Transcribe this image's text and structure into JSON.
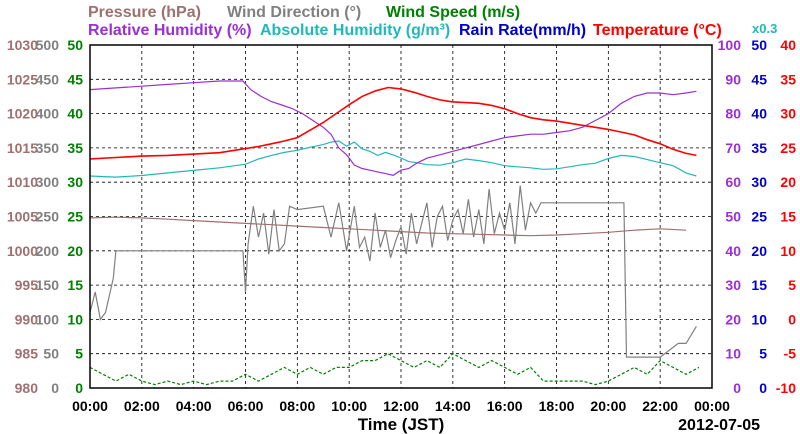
{
  "chart_data": {
    "type": "line",
    "legend": [
      {
        "text": "Pressure (hPa)",
        "color": "#a07070"
      },
      {
        "text": "Wind Direction (°)",
        "color": "#808080"
      },
      {
        "text": "Wind Speed (m/s)",
        "color": "#008000"
      },
      {
        "text": "Relative Humidity (%)",
        "color": "#9b30d0"
      },
      {
        "text": "Absolute Humidity (g/m³)",
        "color": "#20b8b8"
      },
      {
        "text": "Rain Rate(mm/h)",
        "color": "#0000cc"
      },
      {
        "text": "Temperature (°C)",
        "color": "#ff0000"
      }
    ],
    "scale_note": "x0.3",
    "x_ticks": [
      "00:00",
      "02:00",
      "04:00",
      "06:00",
      "08:00",
      "10:00",
      "12:00",
      "14:00",
      "16:00",
      "18:00",
      "20:00",
      "22:00",
      "00:00"
    ],
    "xlabel": "Time (JST)",
    "date": "2012-07-05",
    "xlim": [
      0,
      24
    ],
    "axes": {
      "pressure": {
        "ticks": [
          "1030",
          "1025",
          "1020",
          "1015",
          "1010",
          "1005",
          "1000",
          "995",
          "990",
          "985",
          "980"
        ],
        "range": [
          980,
          1030
        ],
        "color": "#a07070"
      },
      "wind_direction": {
        "ticks": [
          "500",
          "450",
          "400",
          "350",
          "300",
          "250",
          "200",
          "150",
          "100",
          "50",
          "0"
        ],
        "range": [
          0,
          500
        ],
        "color": "#808080"
      },
      "wind_speed": {
        "ticks": [
          "50",
          "45",
          "40",
          "35",
          "30",
          "25",
          "20",
          "15",
          "10",
          "5",
          "0"
        ],
        "range": [
          0,
          50
        ],
        "color": "#008000"
      },
      "humidity": {
        "ticks": [
          "100",
          "90",
          "80",
          "70",
          "60",
          "50",
          "40",
          "30",
          "20",
          "10",
          "0"
        ],
        "range": [
          0,
          100
        ],
        "color": "#9b30d0"
      },
      "rain": {
        "ticks": [
          "50",
          "45",
          "40",
          "35",
          "30",
          "25",
          "20",
          "15",
          "10",
          "5",
          "0"
        ],
        "range": [
          0,
          50
        ],
        "color": "#0000cc"
      },
      "temperature": {
        "ticks": [
          "40",
          "35",
          "30",
          "25",
          "20",
          "15",
          "10",
          "5",
          "0",
          "-5",
          "-10"
        ],
        "range": [
          -10,
          40
        ],
        "color": "#ff0000"
      }
    },
    "series": [
      {
        "name": "Pressure",
        "color": "#a07070",
        "range": [
          980,
          1030
        ],
        "x": [
          0,
          1,
          2,
          3,
          4,
          5,
          6,
          7,
          8,
          9,
          10,
          11,
          12,
          13,
          14,
          15,
          16,
          17,
          18,
          19,
          20,
          21,
          22,
          23
        ],
        "y": [
          1004.8,
          1004.9,
          1004.8,
          1004.6,
          1004.4,
          1004.2,
          1004.0,
          1003.8,
          1003.6,
          1003.4,
          1003.2,
          1003.0,
          1002.8,
          1002.6,
          1002.5,
          1002.4,
          1002.3,
          1002.2,
          1002.3,
          1002.5,
          1002.7,
          1003.0,
          1003.2,
          1003.0
        ]
      },
      {
        "name": "Wind Direction",
        "color": "#808080",
        "range": [
          0,
          500
        ],
        "x": [
          0,
          0.2,
          0.4,
          0.6,
          0.9,
          1.0,
          2.0,
          3.0,
          4.0,
          5.0,
          5.9,
          6.0,
          6.1,
          6.3,
          6.5,
          6.7,
          6.9,
          7.1,
          7.3,
          7.5,
          7.7,
          8.0,
          9.0,
          9.3,
          9.6,
          9.9,
          10.2,
          10.4,
          10.6,
          10.8,
          11.0,
          11.2,
          11.4,
          11.6,
          11.8,
          12.0,
          12.2,
          12.4,
          12.6,
          12.8,
          13.0,
          13.2,
          13.4,
          13.6,
          13.8,
          14.0,
          14.2,
          14.4,
          14.6,
          14.8,
          15.0,
          15.2,
          15.4,
          15.6,
          15.8,
          16.0,
          16.2,
          16.4,
          16.6,
          16.8,
          17.0,
          17.2,
          17.4,
          18.0,
          19.0,
          20.0,
          20.6,
          20.7,
          21.0,
          21.5,
          22.0,
          22.7,
          23.0,
          23.4
        ],
        "y": [
          110,
          140,
          100,
          110,
          160,
          200,
          200,
          200,
          200,
          200,
          200,
          140,
          210,
          265,
          220,
          255,
          195,
          260,
          200,
          210,
          265,
          260,
          265,
          220,
          270,
          200,
          265,
          205,
          220,
          185,
          255,
          205,
          230,
          190,
          215,
          235,
          195,
          255,
          210,
          240,
          270,
          205,
          250,
          265,
          215,
          245,
          260,
          225,
          275,
          220,
          260,
          210,
          290,
          225,
          255,
          230,
          270,
          210,
          295,
          230,
          270,
          255,
          270,
          270,
          270,
          270,
          270,
          45,
          45,
          45,
          45,
          65,
          65,
          90
        ]
      },
      {
        "name": "Wind Speed",
        "color": "#008000",
        "range": [
          0,
          50
        ],
        "x": [
          0,
          0.5,
          1,
          1.5,
          2,
          2.5,
          3,
          3.5,
          4,
          4.5,
          5,
          5.5,
          6,
          6.5,
          7,
          7.5,
          8,
          8.5,
          9,
          9.5,
          10,
          10.5,
          11,
          11.5,
          12,
          12.5,
          13,
          13.5,
          14,
          14.5,
          15,
          15.5,
          16,
          16.5,
          17,
          17.5,
          18,
          18.5,
          19,
          19.5,
          20,
          20.5,
          21,
          21.5,
          22,
          22.5,
          23,
          23.5
        ],
        "y": [
          3,
          2,
          1,
          2,
          1,
          0.5,
          1,
          0.5,
          1,
          0.5,
          1,
          1,
          2,
          1,
          2,
          3,
          2,
          3,
          2,
          3,
          3,
          4,
          4,
          5,
          4,
          3,
          4,
          3,
          5,
          4,
          3,
          4,
          3,
          2,
          3,
          1,
          1,
          1,
          1,
          0.5,
          1,
          2,
          3,
          2,
          4,
          3,
          2,
          3
        ]
      },
      {
        "name": "Relative Humidity",
        "color": "#9b30d0",
        "range": [
          0,
          100
        ],
        "x": [
          0,
          1,
          2,
          3,
          4,
          5,
          5.9,
          6.2,
          6.6,
          7,
          7.4,
          7.8,
          8.2,
          8.6,
          9,
          9.3,
          9.6,
          9.9,
          10.2,
          10.5,
          10.8,
          11.1,
          11.4,
          11.7,
          12,
          12.3,
          12.6,
          13,
          13.5,
          14,
          14.5,
          15,
          15.5,
          16,
          16.5,
          17,
          17.5,
          18,
          18.5,
          19,
          19.5,
          20,
          20.5,
          21,
          21.5,
          22,
          22.5,
          23,
          23.4
        ],
        "y": [
          87,
          87.5,
          88,
          88.5,
          89,
          89.5,
          89.5,
          87,
          85,
          83.5,
          82.5,
          81.5,
          80,
          78,
          76,
          74,
          70,
          68,
          65,
          64,
          63.5,
          63,
          62.5,
          62,
          63.5,
          64,
          65.5,
          67,
          68,
          69,
          70,
          71,
          72,
          73,
          73.5,
          74,
          74,
          74.5,
          75,
          76,
          78,
          80,
          83,
          85,
          86,
          86,
          85.5,
          86,
          86.5
        ]
      },
      {
        "name": "Absolute Humidity",
        "color": "#20b8b8",
        "range": [
          0,
          66.667
        ],
        "x": [
          0,
          1,
          2,
          3,
          4,
          5,
          6,
          6.5,
          7,
          7.5,
          8,
          8.5,
          9,
          9.3,
          9.6,
          9.9,
          10.2,
          10.5,
          10.8,
          11.1,
          11.4,
          11.7,
          12,
          12.3,
          12.6,
          13,
          13.5,
          14,
          14.5,
          15,
          15.5,
          16,
          16.5,
          17,
          17.5,
          18,
          18.5,
          19,
          19.5,
          20,
          20.5,
          21,
          21.5,
          22,
          22.5,
          23,
          23.4
        ],
        "y": [
          41.2,
          41.0,
          41.3,
          41.8,
          42.3,
          42.8,
          43.5,
          44.5,
          45.2,
          45.8,
          46.2,
          46.8,
          47.3,
          47.8,
          48.0,
          47.0,
          47.8,
          46.5,
          46.0,
          45.2,
          45.8,
          45.3,
          44.7,
          44.0,
          43.8,
          43.4,
          43.3,
          43.8,
          44.5,
          44.2,
          43.8,
          43.2,
          43.0,
          42.8,
          42.5,
          42.6,
          43.0,
          43.4,
          43.7,
          44.6,
          45.2,
          45.0,
          44.4,
          43.8,
          43.2,
          41.8,
          41.2
        ]
      },
      {
        "name": "Temperature",
        "color": "#ff0000",
        "range": [
          -10,
          40
        ],
        "x": [
          0,
          1,
          2,
          3,
          4,
          5,
          6,
          6.5,
          7,
          7.5,
          8,
          8.5,
          9,
          9.5,
          10,
          10.5,
          11,
          11.5,
          12,
          12.5,
          13,
          13.5,
          14,
          14.5,
          15,
          15.5,
          16,
          16.5,
          17,
          17.5,
          18,
          18.5,
          19,
          19.5,
          20,
          20.5,
          21,
          21.5,
          22,
          22.5,
          23,
          23.4
        ],
        "y": [
          23.4,
          23.6,
          23.8,
          23.9,
          24.1,
          24.3,
          24.9,
          25.2,
          25.6,
          26,
          26.5,
          27.6,
          28.7,
          30,
          31.3,
          32.5,
          33.3,
          33.8,
          33.6,
          33.1,
          32.5,
          32,
          31.7,
          31.6,
          31.5,
          31.2,
          30.7,
          30,
          29.4,
          29.1,
          28.9,
          28.6,
          28.3,
          28,
          27.7,
          27.3,
          26.9,
          26.2,
          25.6,
          24.8,
          24.2,
          23.9
        ]
      }
    ]
  }
}
